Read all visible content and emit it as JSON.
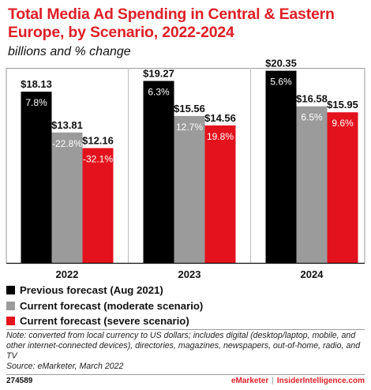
{
  "chart_data": {
    "type": "bar",
    "title": "Total Media Ad Spending in Central & Eastern Europe, by Scenario, 2022-2024",
    "subtitle": "billions and % change",
    "categories": [
      "2022",
      "2023",
      "2024"
    ],
    "series": [
      {
        "name": "Previous forecast (Aug 2021)",
        "color": "#000000",
        "values": [
          18.13,
          19.27,
          20.35
        ],
        "value_labels": [
          "$18.13",
          "$19.27",
          "$20.35"
        ],
        "change_labels": [
          "7.8%",
          "6.3%",
          "5.6%"
        ]
      },
      {
        "name": "Current forecast (moderate scenario)",
        "color": "#9b9b9b",
        "values": [
          13.81,
          15.56,
          16.58
        ],
        "value_labels": [
          "$13.81",
          "$15.56",
          "$16.58"
        ],
        "change_labels": [
          "-22.8%",
          "12.7%",
          "6.5%"
        ]
      },
      {
        "name": "Current forecast (severe scenario)",
        "color": "#e3121d",
        "values": [
          12.16,
          14.56,
          15.95
        ],
        "value_labels": [
          "$12.16",
          "$14.56",
          "$15.95"
        ],
        "change_labels": [
          "-32.1%",
          "19.8%",
          "9.6%"
        ]
      }
    ],
    "ylim": [
      0,
      22
    ],
    "grid": false,
    "legend_position": "bottom-left"
  },
  "note": "Note: converted from local currency to US dollars; includes digital (desktop/laptop, mobile, and other internet-connected devices), directories, magazines, newspapers, out-of-home, radio, and TV",
  "source": "Source: eMarketer, March 2022",
  "footer": {
    "chart_id": "274589",
    "brand_left": "eMarketer",
    "separator": "|",
    "brand_right": "InsiderIntelligence.com"
  }
}
